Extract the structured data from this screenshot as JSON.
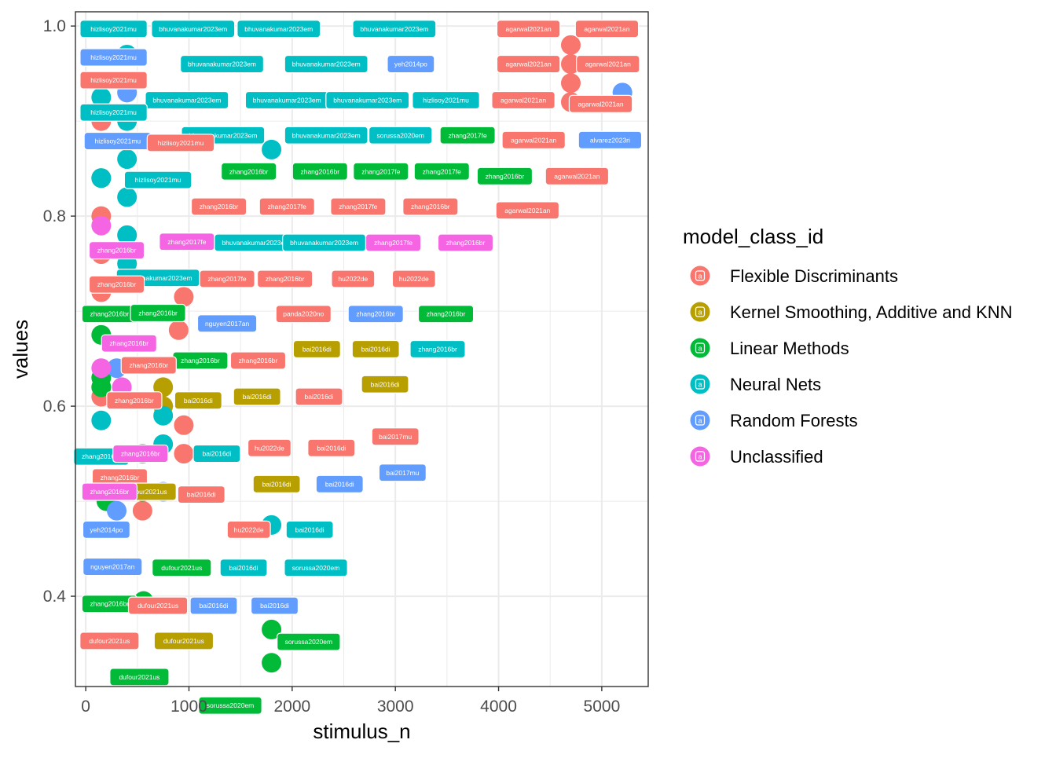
{
  "chart_data": {
    "type": "scatter",
    "xlabel": "stimulus_n",
    "ylabel": "values",
    "xlim": [
      -100,
      5450
    ],
    "ylim": [
      0.305,
      1.015
    ],
    "x_ticks": [
      0,
      1000,
      2000,
      3000,
      4000,
      5000
    ],
    "y_ticks": [
      0.4,
      0.6,
      0.8,
      1.0
    ],
    "x_tick_labels": [
      "0",
      "1000",
      "2000",
      "3000",
      "4000",
      "5000"
    ],
    "y_tick_labels": [
      "0.4",
      "0.6",
      "0.8",
      "1.0"
    ],
    "grid": true,
    "legend_position": "right",
    "legend": {
      "title": "model_class_id",
      "entries": [
        {
          "name": "Flexible Discriminants",
          "color": "#F8766D"
        },
        {
          "name": "Kernel Smoothing, Additive and KNN",
          "color": "#B79F00"
        },
        {
          "name": "Linear Methods",
          "color": "#00BA38"
        },
        {
          "name": "Neural Nets",
          "color": "#00BFC4"
        },
        {
          "name": "Random Forests",
          "color": "#619CFF"
        },
        {
          "name": "Unclassified",
          "color": "#F564E3"
        }
      ],
      "key_glyph": "a"
    },
    "series": [
      {
        "name": "Flexible Discriminants",
        "points": [
          {
            "x": 4700,
            "y": 0.98
          },
          {
            "x": 4700,
            "y": 0.96
          },
          {
            "x": 4700,
            "y": 0.94
          },
          {
            "x": 4700,
            "y": 0.92
          },
          {
            "x": 150,
            "y": 0.9
          },
          {
            "x": 150,
            "y": 0.8
          },
          {
            "x": 150,
            "y": 0.76
          },
          {
            "x": 150,
            "y": 0.72
          },
          {
            "x": 150,
            "y": 0.62
          },
          {
            "x": 150,
            "y": 0.61
          },
          {
            "x": 950,
            "y": 0.715
          },
          {
            "x": 900,
            "y": 0.68
          },
          {
            "x": 950,
            "y": 0.58
          },
          {
            "x": 950,
            "y": 0.55
          },
          {
            "x": 550,
            "y": 0.49
          }
        ]
      },
      {
        "name": "Kernel Smoothing, Additive and KNN",
        "points": [
          {
            "x": 750,
            "y": 0.62
          },
          {
            "x": 750,
            "y": 0.6
          },
          {
            "x": 550,
            "y": 0.55
          }
        ]
      },
      {
        "name": "Linear Methods",
        "points": [
          {
            "x": 150,
            "y": 0.84
          },
          {
            "x": 150,
            "y": 0.675
          },
          {
            "x": 150,
            "y": 0.63
          },
          {
            "x": 150,
            "y": 0.62
          },
          {
            "x": 550,
            "y": 0.51
          },
          {
            "x": 200,
            "y": 0.5
          },
          {
            "x": 560,
            "y": 0.395
          },
          {
            "x": 1800,
            "y": 0.365
          },
          {
            "x": 1800,
            "y": 0.33
          }
        ]
      },
      {
        "name": "Neural Nets",
        "points": [
          {
            "x": 400,
            "y": 0.97
          },
          {
            "x": 150,
            "y": 0.925
          },
          {
            "x": 400,
            "y": 0.9
          },
          {
            "x": 1800,
            "y": 0.87
          },
          {
            "x": 400,
            "y": 0.86
          },
          {
            "x": 150,
            "y": 0.84
          },
          {
            "x": 400,
            "y": 0.82
          },
          {
            "x": 400,
            "y": 0.78
          },
          {
            "x": 400,
            "y": 0.75
          },
          {
            "x": 150,
            "y": 0.585
          },
          {
            "x": 750,
            "y": 0.59
          },
          {
            "x": 750,
            "y": 0.56
          },
          {
            "x": 1800,
            "y": 0.475
          }
        ]
      },
      {
        "name": "Random Forests",
        "points": [
          {
            "x": 5200,
            "y": 0.93
          },
          {
            "x": 400,
            "y": 0.93
          },
          {
            "x": 300,
            "y": 0.64
          },
          {
            "x": 750,
            "y": 0.51
          },
          {
            "x": 300,
            "y": 0.49
          }
        ]
      },
      {
        "name": "Unclassified",
        "points": [
          {
            "x": 150,
            "y": 0.79
          },
          {
            "x": 150,
            "y": 0.64
          },
          {
            "x": 350,
            "y": 0.62
          }
        ]
      }
    ],
    "labels": [
      {
        "text": "hizlisoy2021mu",
        "class": "Neural Nets",
        "x": 270,
        "y": 0.997
      },
      {
        "text": "bhuvanakumar2023em",
        "class": "Neural Nets",
        "x": 1040,
        "y": 0.997
      },
      {
        "text": "bhuvanakumar2023em",
        "class": "Neural Nets",
        "x": 1870,
        "y": 0.997
      },
      {
        "text": "bhuvanakumar2023em",
        "class": "Neural Nets",
        "x": 2990,
        "y": 0.997
      },
      {
        "text": "agarwal2021an",
        "class": "Flexible Discriminants",
        "x": 4290,
        "y": 0.997
      },
      {
        "text": "agarwal2021an",
        "class": "Flexible Discriminants",
        "x": 5050,
        "y": 0.997
      },
      {
        "text": "hizlisoy2021mu",
        "class": "Random Forests",
        "x": 270,
        "y": 0.967
      },
      {
        "text": "bhuvanakumar2023em",
        "class": "Neural Nets",
        "x": 1320,
        "y": 0.96
      },
      {
        "text": "bhuvanakumar2023em",
        "class": "Neural Nets",
        "x": 2330,
        "y": 0.96
      },
      {
        "text": "yeh2014po",
        "class": "Random Forests",
        "x": 3150,
        "y": 0.96
      },
      {
        "text": "agarwal2021an",
        "class": "Flexible Discriminants",
        "x": 4290,
        "y": 0.96
      },
      {
        "text": "agarwal2021an",
        "class": "Flexible Discriminants",
        "x": 5060,
        "y": 0.96
      },
      {
        "text": "hizlisoy2021mu",
        "class": "Flexible Discriminants",
        "x": 270,
        "y": 0.943
      },
      {
        "text": "bhuvanakumar2023em",
        "class": "Neural Nets",
        "x": 980,
        "y": 0.922
      },
      {
        "text": "bhuvanakumar2023em",
        "class": "Neural Nets",
        "x": 1950,
        "y": 0.922
      },
      {
        "text": "bhuvanakumar2023em",
        "class": "Neural Nets",
        "x": 2730,
        "y": 0.922
      },
      {
        "text": "hizlisoy2021mu",
        "class": "Neural Nets",
        "x": 3490,
        "y": 0.922
      },
      {
        "text": "agarwal2021an",
        "class": "Flexible Discriminants",
        "x": 4240,
        "y": 0.922
      },
      {
        "text": "agarwal2021an",
        "class": "Flexible Discriminants",
        "x": 4990,
        "y": 0.918
      },
      {
        "text": "hizlisoy2021mu",
        "class": "Neural Nets",
        "x": 270,
        "y": 0.909
      },
      {
        "text": "bhuvanakumar2023em",
        "class": "Neural Nets",
        "x": 1330,
        "y": 0.885
      },
      {
        "text": "bhuvanakumar2023em",
        "class": "Neural Nets",
        "x": 2330,
        "y": 0.885
      },
      {
        "text": "sorussa2020em",
        "class": "Neural Nets",
        "x": 3050,
        "y": 0.885
      },
      {
        "text": "zhang2017fe",
        "class": "Linear Methods",
        "x": 3700,
        "y": 0.885
      },
      {
        "text": "agarwal2021an",
        "class": "Flexible Discriminants",
        "x": 4340,
        "y": 0.88
      },
      {
        "text": "alvarez2023ri",
        "class": "Random Forests",
        "x": 5080,
        "y": 0.88
      },
      {
        "text": "hizlisoy2021mu",
        "class": "Random Forests",
        "x": 310,
        "y": 0.879
      },
      {
        "text": "hizlisoy2021mu",
        "class": "Flexible Discriminants",
        "x": 920,
        "y": 0.877
      },
      {
        "text": "zhang2016br",
        "class": "Linear Methods",
        "x": 1580,
        "y": 0.847
      },
      {
        "text": "zhang2016br",
        "class": "Linear Methods",
        "x": 2270,
        "y": 0.847
      },
      {
        "text": "zhang2017fe",
        "class": "Linear Methods",
        "x": 2860,
        "y": 0.847
      },
      {
        "text": "zhang2017fe",
        "class": "Linear Methods",
        "x": 3450,
        "y": 0.847
      },
      {
        "text": "zhang2016br",
        "class": "Linear Methods",
        "x": 4060,
        "y": 0.842
      },
      {
        "text": "agarwal2021an",
        "class": "Flexible Discriminants",
        "x": 4760,
        "y": 0.842
      },
      {
        "text": "hizlisoy2021mu",
        "class": "Neural Nets",
        "x": 700,
        "y": 0.838
      },
      {
        "text": "zhang2016br",
        "class": "Flexible Discriminants",
        "x": 1290,
        "y": 0.81
      },
      {
        "text": "zhang2017fe",
        "class": "Flexible Discriminants",
        "x": 1950,
        "y": 0.81
      },
      {
        "text": "zhang2017fe",
        "class": "Flexible Discriminants",
        "x": 2640,
        "y": 0.81
      },
      {
        "text": "zhang2016br",
        "class": "Flexible Discriminants",
        "x": 3340,
        "y": 0.81
      },
      {
        "text": "agarwal2021an",
        "class": "Flexible Discriminants",
        "x": 4280,
        "y": 0.806
      },
      {
        "text": "zhang2017fe",
        "class": "Unclassified",
        "x": 980,
        "y": 0.773
      },
      {
        "text": "bhuvanakumar2023em",
        "class": "Neural Nets",
        "x": 1650,
        "y": 0.772
      },
      {
        "text": "bhuvanakumar2023em",
        "class": "Neural Nets",
        "x": 2310,
        "y": 0.772
      },
      {
        "text": "zhang2017fe",
        "class": "Unclassified",
        "x": 2980,
        "y": 0.772
      },
      {
        "text": "zhang2016br",
        "class": "Unclassified",
        "x": 3680,
        "y": 0.772
      },
      {
        "text": "zhang2016br",
        "class": "Unclassified",
        "x": 300,
        "y": 0.764
      },
      {
        "text": "bhuvanakumar2023em",
        "class": "Neural Nets",
        "x": 700,
        "y": 0.735
      },
      {
        "text": "zhang2017fe",
        "class": "Flexible Discriminants",
        "x": 1370,
        "y": 0.734
      },
      {
        "text": "zhang2016br",
        "class": "Flexible Discriminants",
        "x": 1930,
        "y": 0.734
      },
      {
        "text": "hu2022de",
        "class": "Flexible Discriminants",
        "x": 2590,
        "y": 0.734
      },
      {
        "text": "hu2022de",
        "class": "Flexible Discriminants",
        "x": 3180,
        "y": 0.734
      },
      {
        "text": "zhang2016br",
        "class": "Flexible Discriminants",
        "x": 300,
        "y": 0.728
      },
      {
        "text": "zhang2016br",
        "class": "Linear Methods",
        "x": 230,
        "y": 0.697
      },
      {
        "text": "zhang2016br",
        "class": "Linear Methods",
        "x": 700,
        "y": 0.698
      },
      {
        "text": "nguyen2017an",
        "class": "Random Forests",
        "x": 1370,
        "y": 0.687
      },
      {
        "text": "panda2020no",
        "class": "Flexible Discriminants",
        "x": 2110,
        "y": 0.697
      },
      {
        "text": "zhang2016br",
        "class": "Random Forests",
        "x": 2810,
        "y": 0.697
      },
      {
        "text": "zhang2016br",
        "class": "Linear Methods",
        "x": 3490,
        "y": 0.697
      },
      {
        "text": "bai2016di",
        "class": "Kernel Smoothing, Additive and KNN",
        "x": 2240,
        "y": 0.66
      },
      {
        "text": "bai2016di",
        "class": "Kernel Smoothing, Additive and KNN",
        "x": 2810,
        "y": 0.66
      },
      {
        "text": "zhang2016br",
        "class": "Neural Nets",
        "x": 3410,
        "y": 0.66
      },
      {
        "text": "zhang2016br",
        "class": "Unclassified",
        "x": 420,
        "y": 0.666
      },
      {
        "text": "zhang2016br",
        "class": "Linear Methods",
        "x": 1110,
        "y": 0.648
      },
      {
        "text": "zhang2016br",
        "class": "Flexible Discriminants",
        "x": 1670,
        "y": 0.648
      },
      {
        "text": "zhang2016br",
        "class": "Flexible Discriminants",
        "x": 610,
        "y": 0.643
      },
      {
        "text": "bai2016di",
        "class": "Kernel Smoothing, Additive and KNN",
        "x": 2900,
        "y": 0.623
      },
      {
        "text": "bai2016di",
        "class": "Kernel Smoothing, Additive and KNN",
        "x": 1660,
        "y": 0.61
      },
      {
        "text": "bai2016di",
        "class": "Flexible Discriminants",
        "x": 2260,
        "y": 0.61
      },
      {
        "text": "zhang2016br",
        "class": "Flexible Discriminants",
        "x": 470,
        "y": 0.606
      },
      {
        "text": "bai2016di",
        "class": "Kernel Smoothing, Additive and KNN",
        "x": 1090,
        "y": 0.606
      },
      {
        "text": "bai2017mu",
        "class": "Flexible Discriminants",
        "x": 3000,
        "y": 0.568
      },
      {
        "text": "zhang2016br",
        "class": "Neural Nets",
        "x": 150,
        "y": 0.547
      },
      {
        "text": "hu2022de",
        "class": "Flexible Discriminants",
        "x": 1780,
        "y": 0.556
      },
      {
        "text": "bai2016di",
        "class": "Flexible Discriminants",
        "x": 2380,
        "y": 0.556
      },
      {
        "text": "zhang2016br",
        "class": "Unclassified",
        "x": 530,
        "y": 0.55
      },
      {
        "text": "bai2016di",
        "class": "Neural Nets",
        "x": 1270,
        "y": 0.55
      },
      {
        "text": "bai2017mu",
        "class": "Random Forests",
        "x": 3070,
        "y": 0.53
      },
      {
        "text": "zhang2016br",
        "class": "Flexible Discriminants",
        "x": 330,
        "y": 0.525
      },
      {
        "text": "dufour2021us",
        "class": "Kernel Smoothing, Additive and KNN",
        "x": 590,
        "y": 0.51
      },
      {
        "text": "zhang2016br",
        "class": "Unclassified",
        "x": 230,
        "y": 0.51
      },
      {
        "text": "bai2016di",
        "class": "Kernel Smoothing, Additive and KNN",
        "x": 1850,
        "y": 0.518
      },
      {
        "text": "bai2016di",
        "class": "Random Forests",
        "x": 2460,
        "y": 0.518
      },
      {
        "text": "bai2016di",
        "class": "Flexible Discriminants",
        "x": 1120,
        "y": 0.507
      },
      {
        "text": "yeh2014po",
        "class": "Random Forests",
        "x": 200,
        "y": 0.47
      },
      {
        "text": "hu2022de",
        "class": "Flexible Discriminants",
        "x": 1580,
        "y": 0.47
      },
      {
        "text": "bai2016di",
        "class": "Neural Nets",
        "x": 2170,
        "y": 0.47
      },
      {
        "text": "nguyen2017an",
        "class": "Random Forests",
        "x": 260,
        "y": 0.431
      },
      {
        "text": "dufour2021us",
        "class": "Linear Methods",
        "x": 930,
        "y": 0.43
      },
      {
        "text": "bai2016di",
        "class": "Neural Nets",
        "x": 1530,
        "y": 0.43
      },
      {
        "text": "sorussa2020em",
        "class": "Neural Nets",
        "x": 2230,
        "y": 0.43
      },
      {
        "text": "zhang2016br",
        "class": "Linear Methods",
        "x": 230,
        "y": 0.392
      },
      {
        "text": "dufour2021us",
        "class": "Flexible Discriminants",
        "x": 700,
        "y": 0.39
      },
      {
        "text": "bai2016di",
        "class": "Random Forests",
        "x": 1240,
        "y": 0.39
      },
      {
        "text": "bai2016di",
        "class": "Random Forests",
        "x": 1830,
        "y": 0.39
      },
      {
        "text": "dufour2021us",
        "class": "Flexible Discriminants",
        "x": 230,
        "y": 0.353
      },
      {
        "text": "dufour2021us",
        "class": "Kernel Smoothing, Additive and KNN",
        "x": 950,
        "y": 0.353
      },
      {
        "text": "sorussa2020em",
        "class": "Linear Methods",
        "x": 2160,
        "y": 0.352
      },
      {
        "text": "dufour2021us",
        "class": "Linear Methods",
        "x": 520,
        "y": 0.315
      },
      {
        "text": "sorussa2020em",
        "class": "Linear Methods",
        "x": 1400,
        "y": 0.285
      }
    ]
  }
}
